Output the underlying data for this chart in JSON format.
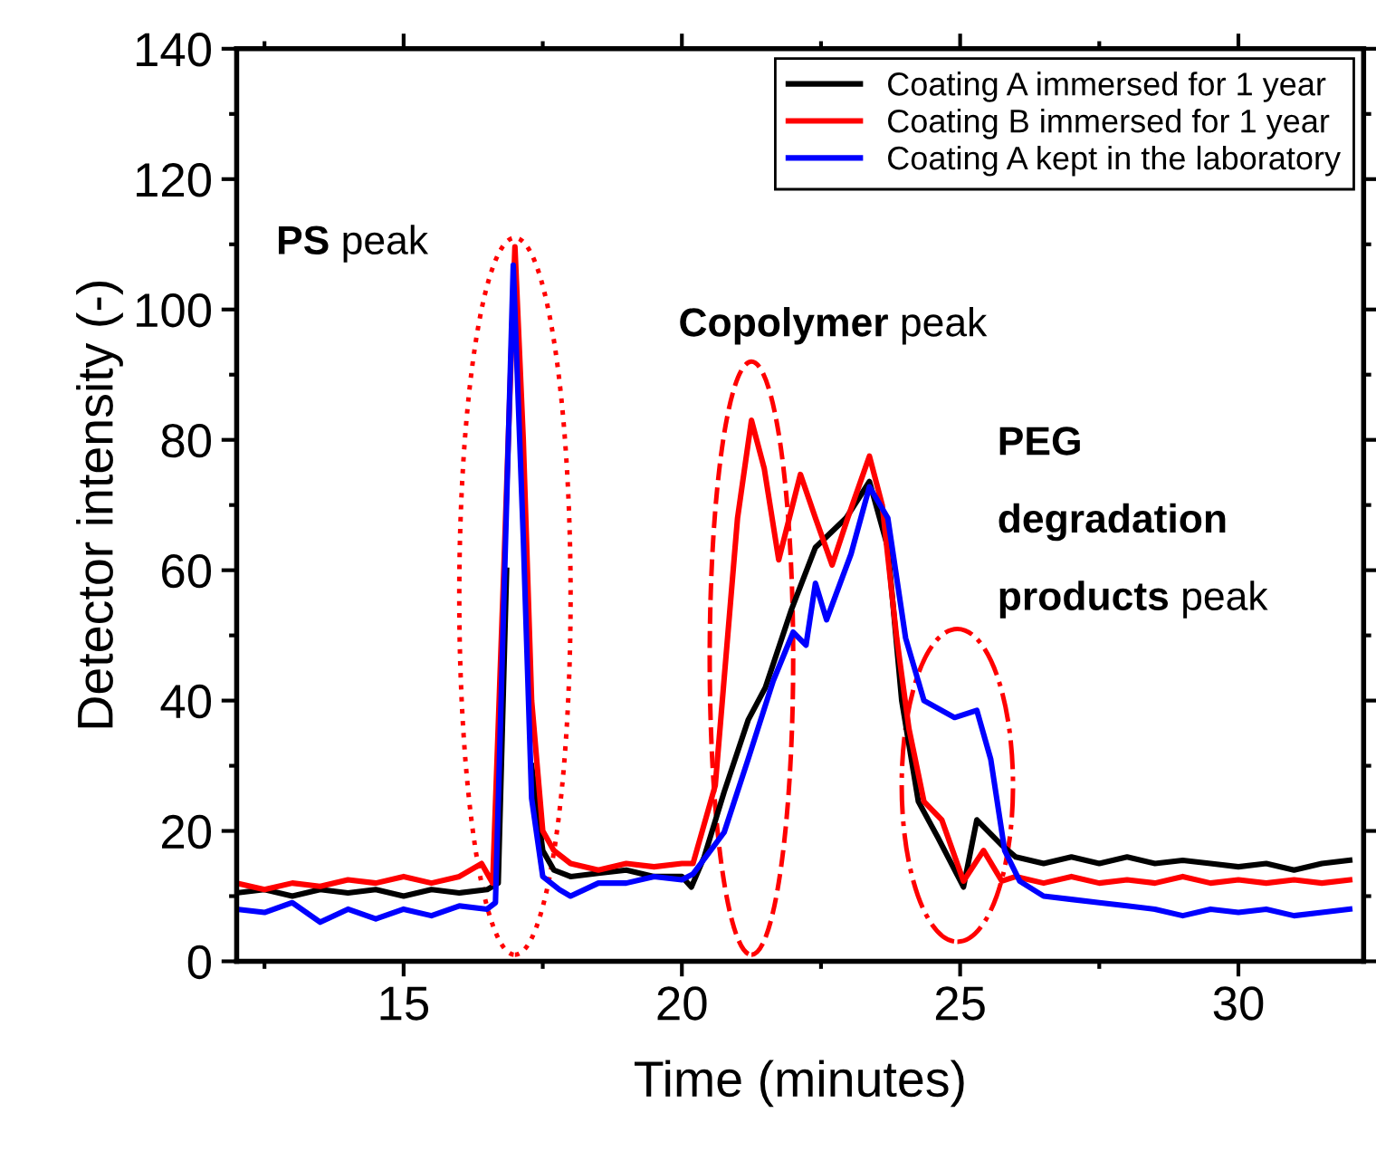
{
  "chart_data": {
    "type": "line",
    "xlabel": "Time (minutes)",
    "ylabel": "Detector intensity (-)",
    "xlim": [
      12,
      32.25
    ],
    "ylim": [
      0,
      140
    ],
    "xticks": [
      15,
      20,
      25,
      30
    ],
    "yticks": [
      0,
      20,
      40,
      60,
      80,
      100,
      120,
      140
    ],
    "legend": "top right",
    "grid": false,
    "marker": "none",
    "line_style": "solid",
    "series": [
      {
        "name": "Coating A immersed for 1 year",
        "color": "#000000",
        "x": [
          12,
          12.5,
          13,
          13.5,
          14,
          14.5,
          15,
          15.5,
          16,
          16.5,
          16.7,
          16.85,
          17.0,
          17.15,
          17.3,
          17.5,
          17.7,
          18,
          18.5,
          19,
          19.5,
          20,
          20.17,
          20.4,
          20.76,
          21.19,
          21.5,
          21.97,
          22.4,
          22.95,
          23.37,
          23.7,
          23.95,
          24.25,
          24.6,
          25.06,
          25.3,
          25.75,
          26,
          26.5,
          27,
          27.5,
          28,
          28.5,
          29,
          29.5,
          30,
          30.5,
          31,
          31.5,
          32
        ],
        "values": [
          10.5,
          11,
          10,
          11,
          10.5,
          11,
          10,
          11,
          10.5,
          11,
          12,
          60,
          null,
          null,
          30,
          17,
          14,
          13,
          13.5,
          14,
          13,
          13,
          11.4,
          16,
          26,
          37,
          42,
          54,
          63.5,
          68,
          73.6,
          63.5,
          40,
          24.5,
          19,
          11.4,
          21.7,
          17.8,
          16,
          15,
          16,
          15,
          16,
          15,
          15.5,
          15,
          14.5,
          15,
          14,
          15,
          15.5
        ]
      },
      {
        "name": "Coating B immersed for 1 year",
        "color": "#ff0000",
        "x": [
          12,
          12.5,
          13,
          13.5,
          14,
          14.5,
          15,
          15.5,
          16,
          16.4,
          16.6,
          16.8,
          17.0,
          17.15,
          17.3,
          17.5,
          17.7,
          18,
          18.5,
          19,
          19.5,
          20,
          20.2,
          20.6,
          21.0,
          21.25,
          21.48,
          21.74,
          22.13,
          22.4,
          22.7,
          22.98,
          23.37,
          23.6,
          23.86,
          24.08,
          24.35,
          24.67,
          25.06,
          25.42,
          25.75,
          26,
          26.5,
          27,
          27.5,
          28,
          28.5,
          29,
          29.5,
          30,
          30.5,
          31,
          31.5,
          32
        ],
        "values": [
          12,
          11,
          12,
          11.5,
          12.5,
          12,
          13,
          12,
          13,
          15,
          12,
          60,
          109.6,
          80,
          40,
          20,
          17,
          15,
          14,
          15,
          14.5,
          15,
          15,
          27,
          68,
          83,
          75.6,
          61.6,
          74.7,
          68,
          60.8,
          68,
          77.5,
          70,
          49.6,
          35.7,
          24.5,
          21.7,
          12.3,
          17,
          12.3,
          13,
          12,
          13,
          12,
          12.5,
          12,
          13,
          12,
          12.5,
          12,
          12.5,
          12,
          12.5
        ]
      },
      {
        "name": "Coating A kept in the laboratory",
        "color": "#0000ff",
        "x": [
          12,
          12.5,
          13,
          13.5,
          14,
          14.5,
          15,
          15.5,
          16,
          16.5,
          16.65,
          16.8,
          16.97,
          17.15,
          17.3,
          17.5,
          17.8,
          18,
          18.5,
          19,
          19.5,
          20,
          20.2,
          20.76,
          21.19,
          21.64,
          22.0,
          22.23,
          22.4,
          22.6,
          23.04,
          23.37,
          23.7,
          24.02,
          24.35,
          24.9,
          25.3,
          25.55,
          25.8,
          26.07,
          26.5,
          27,
          27.5,
          28,
          28.5,
          29,
          29.5,
          30,
          30.5,
          31,
          31.5,
          32
        ],
        "values": [
          8,
          7.5,
          9,
          6,
          8,
          6.5,
          8,
          7,
          8.5,
          8,
          9,
          55,
          106.8,
          65,
          25,
          13,
          11,
          10,
          12,
          12,
          13,
          12.5,
          13.4,
          19.8,
          31,
          43,
          50.5,
          48.5,
          58,
          52.4,
          62.5,
          72.8,
          68,
          49.6,
          40,
          37.4,
          38.5,
          31,
          17,
          12.3,
          10,
          9.5,
          9,
          8.5,
          8,
          7,
          8,
          7.5,
          8,
          7,
          7.5,
          8
        ]
      }
    ],
    "annotations": [
      "PS peak",
      "Copolymer peak",
      "PEG\ndegradation\nproducts peak"
    ]
  }
}
